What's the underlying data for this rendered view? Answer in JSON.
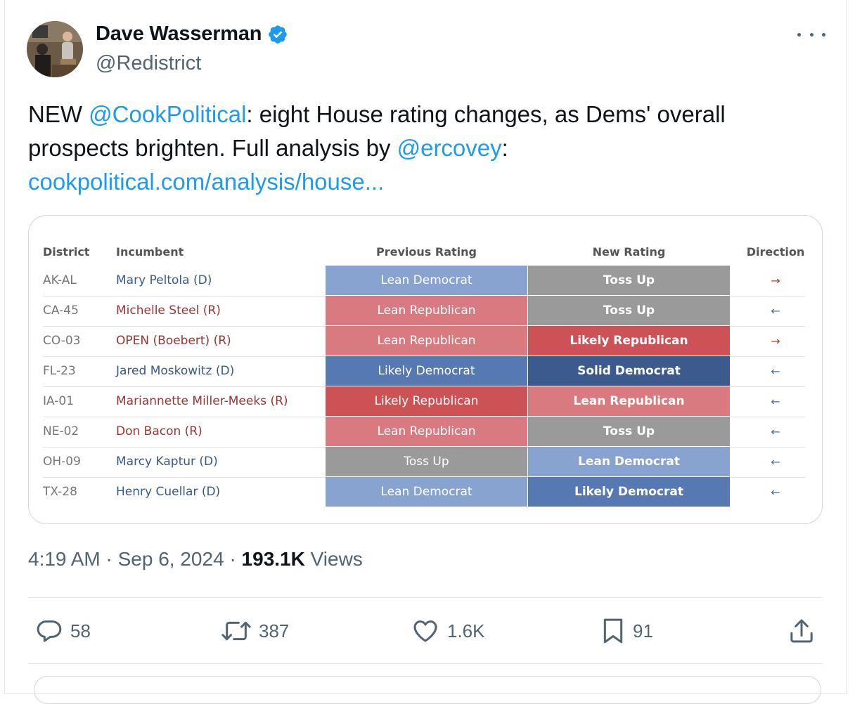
{
  "author": {
    "name": "Dave Wasserman",
    "handle": "@Redistrict",
    "verified_color": "#1d9bf0"
  },
  "tweet": {
    "parts": [
      {
        "text": "NEW ",
        "link": false
      },
      {
        "text": "@CookPolitical",
        "link": true
      },
      {
        "text": ": eight House rating changes, as Dems' overall prospects brighten. Full analysis by ",
        "link": false
      },
      {
        "text": "@ercovey",
        "link": true
      },
      {
        "text": ": ",
        "link": false
      }
    ],
    "url_text": "cookpolitical.com/analysis/house..."
  },
  "table": {
    "headers": {
      "district": "District",
      "incumbent": "Incumbent",
      "previous": "Previous Rating",
      "new": "New Rating",
      "direction": "Direction"
    },
    "rows": [
      {
        "district": "AK-AL",
        "incumbent": "Mary Peltola (D)",
        "party": "D",
        "previous": "Lean Democrat",
        "new": "Toss Up",
        "direction": "→",
        "dir_color": "#c0392b"
      },
      {
        "district": "CA-45",
        "incumbent": "Michelle Steel (R)",
        "party": "R",
        "previous": "Lean Republican",
        "new": "Toss Up",
        "direction": "←",
        "dir_color": "#4a6fa5"
      },
      {
        "district": "CO-03",
        "incumbent": "OPEN (Boebert) (R)",
        "party": "R",
        "previous": "Lean Republican",
        "new": "Likely Republican",
        "direction": "→",
        "dir_color": "#c0392b"
      },
      {
        "district": "FL-23",
        "incumbent": "Jared Moskowitz (D)",
        "party": "D",
        "previous": "Likely Democrat",
        "new": "Solid Democrat",
        "direction": "←",
        "dir_color": "#4a6fa5"
      },
      {
        "district": "IA-01",
        "incumbent": "Mariannette Miller-Meeks (R)",
        "party": "R",
        "previous": "Likely Republican",
        "new": "Lean Republican",
        "direction": "←",
        "dir_color": "#4a6fa5"
      },
      {
        "district": "NE-02",
        "incumbent": "Don Bacon (R)",
        "party": "R",
        "previous": "Lean Republican",
        "new": "Toss Up",
        "direction": "←",
        "dir_color": "#4a6fa5"
      },
      {
        "district": "OH-09",
        "incumbent": "Marcy Kaptur (D)",
        "party": "D",
        "previous": "Toss Up",
        "new": "Lean Democrat",
        "direction": "←",
        "dir_color": "#4a6fa5"
      },
      {
        "district": "TX-28",
        "incumbent": "Henry Cuellar (D)",
        "party": "D",
        "previous": "Lean Democrat",
        "new": "Likely Democrat",
        "direction": "←",
        "dir_color": "#4a6fa5"
      }
    ],
    "rating_colors": {
      "Solid Democrat": "#3d5a8f",
      "Likely Democrat": "#5779b3",
      "Lean Democrat": "#88a3cf",
      "Toss Up": "#9a9a9a",
      "Lean Republican": "#d87a80",
      "Likely Republican": "#cc5255"
    },
    "party_colors": {
      "D": "#3a5a8c",
      "R": "#9b3535"
    }
  },
  "meta": {
    "time": "4:19 AM",
    "sep": "·",
    "date": "Sep 6, 2024",
    "views_count": "193.1K",
    "views_label": "Views"
  },
  "actions": {
    "replies": "58",
    "reposts": "387",
    "likes": "1.6K",
    "bookmarks": "91"
  }
}
